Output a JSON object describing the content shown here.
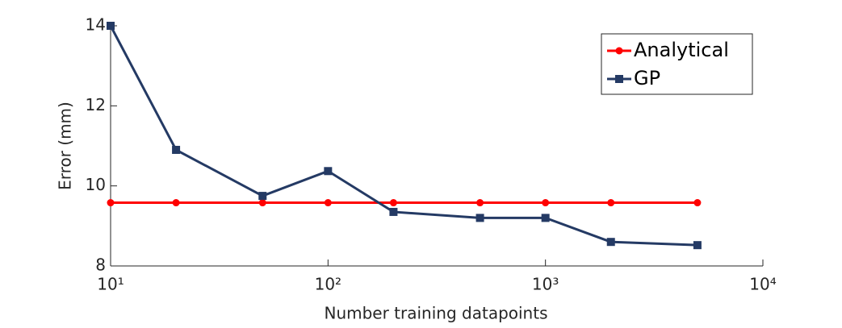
{
  "chart_data": {
    "type": "line",
    "xlabel": "Number training datapoints",
    "ylabel": "Error (mm)",
    "x": [
      10,
      20,
      50,
      100,
      200,
      500,
      1000,
      2000,
      5000
    ],
    "series": [
      {
        "name": "Analytical",
        "color": "#ff0000",
        "marker": "circle",
        "values": [
          9.58,
          9.58,
          9.58,
          9.58,
          9.58,
          9.58,
          9.58,
          9.58,
          9.58
        ]
      },
      {
        "name": "GP",
        "color": "#243a64",
        "marker": "square",
        "values": [
          14,
          10.9,
          9.75,
          10.37,
          9.35,
          9.2,
          9.2,
          8.6,
          8.52
        ]
      }
    ],
    "xscale": "log",
    "xlim": [
      10,
      10000
    ],
    "xticks": [
      {
        "value": 10,
        "label": "10¹"
      },
      {
        "value": 100,
        "label": "10²"
      },
      {
        "value": 1000,
        "label": "10³"
      },
      {
        "value": 10000,
        "label": "10⁴"
      }
    ],
    "ylim": [
      8,
      14
    ],
    "yticks": [
      8,
      10,
      12,
      14
    ],
    "grid": false,
    "legend": "northeast"
  }
}
